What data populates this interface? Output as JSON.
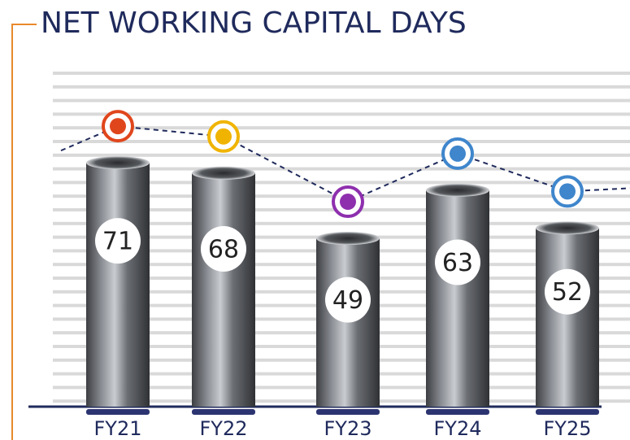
{
  "chart_data": {
    "type": "bar",
    "title": "NET WORKING CAPITAL DAYS",
    "categories": [
      "FY21",
      "FY22",
      "FY23",
      "FY24",
      "FY25"
    ],
    "values": [
      71,
      68,
      49,
      63,
      52
    ],
    "ylim": [
      0,
      85
    ],
    "color": "#6b6e72",
    "marker_colors": [
      "#e0461c",
      "#f0b400",
      "#8e2fae",
      "#3f86cc",
      "#3f86cc"
    ],
    "grid": true
  }
}
